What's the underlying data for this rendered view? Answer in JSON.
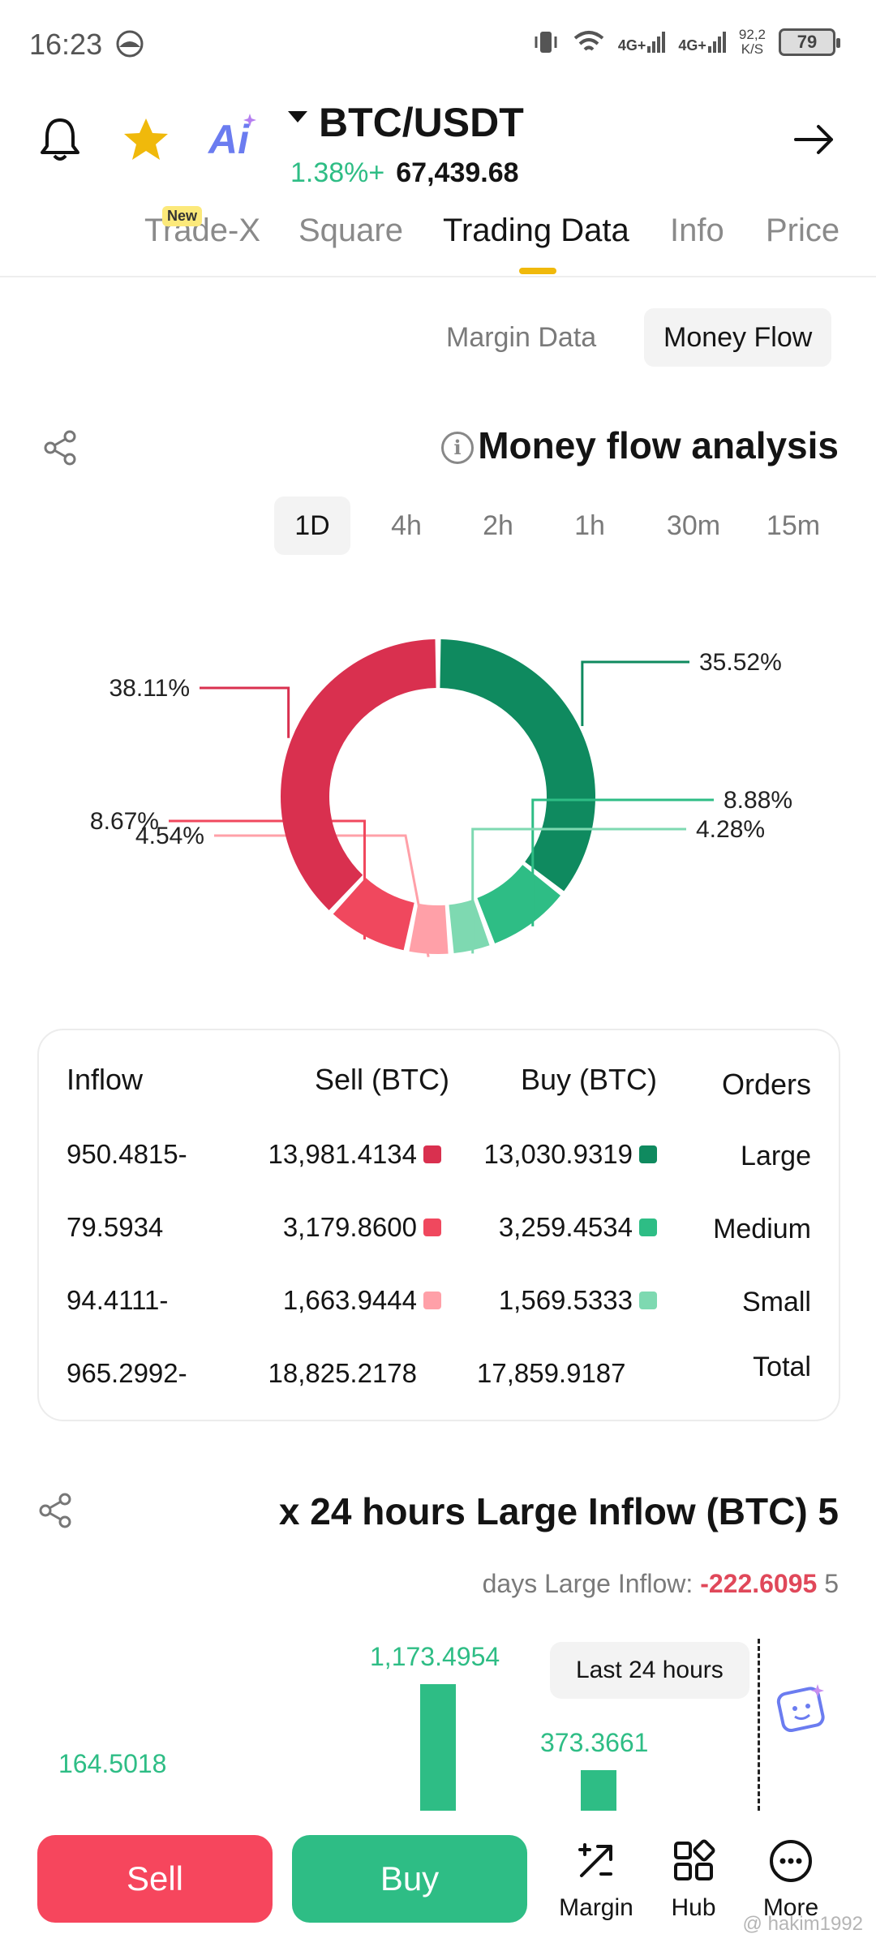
{
  "status_bar": {
    "time": "16:23",
    "signal1": "4G+",
    "signal2": "4G+",
    "speed_value": "92,2",
    "speed_unit": "K/S",
    "battery": "79"
  },
  "header": {
    "pair": "BTC/USDT",
    "change": "1.38%+",
    "price": "67,439.68",
    "ai_label": "Ai"
  },
  "tabs": [
    {
      "label": "Trade-X"
    },
    {
      "label": "Square"
    },
    {
      "label": "Trading Data"
    },
    {
      "label": "Info"
    },
    {
      "label": "Price"
    }
  ],
  "new_badge": "New",
  "subtabs": {
    "margin": "Margin Data",
    "money_flow": "Money Flow"
  },
  "money_flow": {
    "title": "Money flow analysis",
    "info_glyph": "i",
    "timeframes": [
      "1D",
      "4h",
      "2h",
      "1h",
      "30m",
      "15m"
    ],
    "active_timeframe": "1D"
  },
  "chart_data": {
    "type": "pie",
    "categories": [
      "Large Buy",
      "Medium Buy",
      "Small Buy",
      "Small Sell",
      "Medium Sell",
      "Large Sell"
    ],
    "values": [
      35.52,
      8.88,
      4.28,
      4.54,
      8.67,
      38.11
    ],
    "labels": [
      "35.52%",
      "8.88%",
      "4.28%",
      "4.54%",
      "8.67%",
      "38.11%"
    ],
    "colors": [
      "#0f8a5f",
      "#2ebd85",
      "#7ed9b1",
      "#ffa0a8",
      "#f0485e",
      "#d9304f"
    ]
  },
  "flow_table": {
    "headers": {
      "inflow": "Inflow",
      "sell": "Sell (BTC)",
      "buy": "Buy (BTC)",
      "orders": "Orders"
    },
    "rows": [
      {
        "inflow": "950.4815-",
        "sell": "13,981.4134",
        "buy": "13,030.9319",
        "order": "Large",
        "sell_color": "#d9304f",
        "buy_color": "#0f8a5f"
      },
      {
        "inflow": "79.5934",
        "sell": "3,179.8600",
        "buy": "3,259.4534",
        "order": "Medium",
        "sell_color": "#f0485e",
        "buy_color": "#2ebd85"
      },
      {
        "inflow": "94.4111-",
        "sell": "1,663.9444",
        "buy": "1,569.5333",
        "order": "Small",
        "sell_color": "#ffa0a8",
        "buy_color": "#7ed9b1"
      },
      {
        "inflow": "965.2992-",
        "sell": "18,825.2178",
        "buy": "17,859.9187",
        "order": "Total"
      }
    ]
  },
  "large_inflow": {
    "title": "x 24 hours Large Inflow (BTC) 5",
    "sub_prefix": "days Large Inflow: ",
    "sub_value": "-222.6095",
    "sub_suffix": " 5",
    "tooltip": "Last 24 hours",
    "bars": [
      {
        "label": "164.5018",
        "value": 164.5018
      },
      {
        "label": "1,173.4954",
        "value": 1173.4954
      },
      {
        "label": "373.3661",
        "value": 373.3661
      }
    ]
  },
  "bottom_bar": {
    "sell": "Sell",
    "buy": "Buy",
    "margin": "Margin",
    "hub": "Hub",
    "more": "More"
  },
  "watermark": "@ hakim1992"
}
